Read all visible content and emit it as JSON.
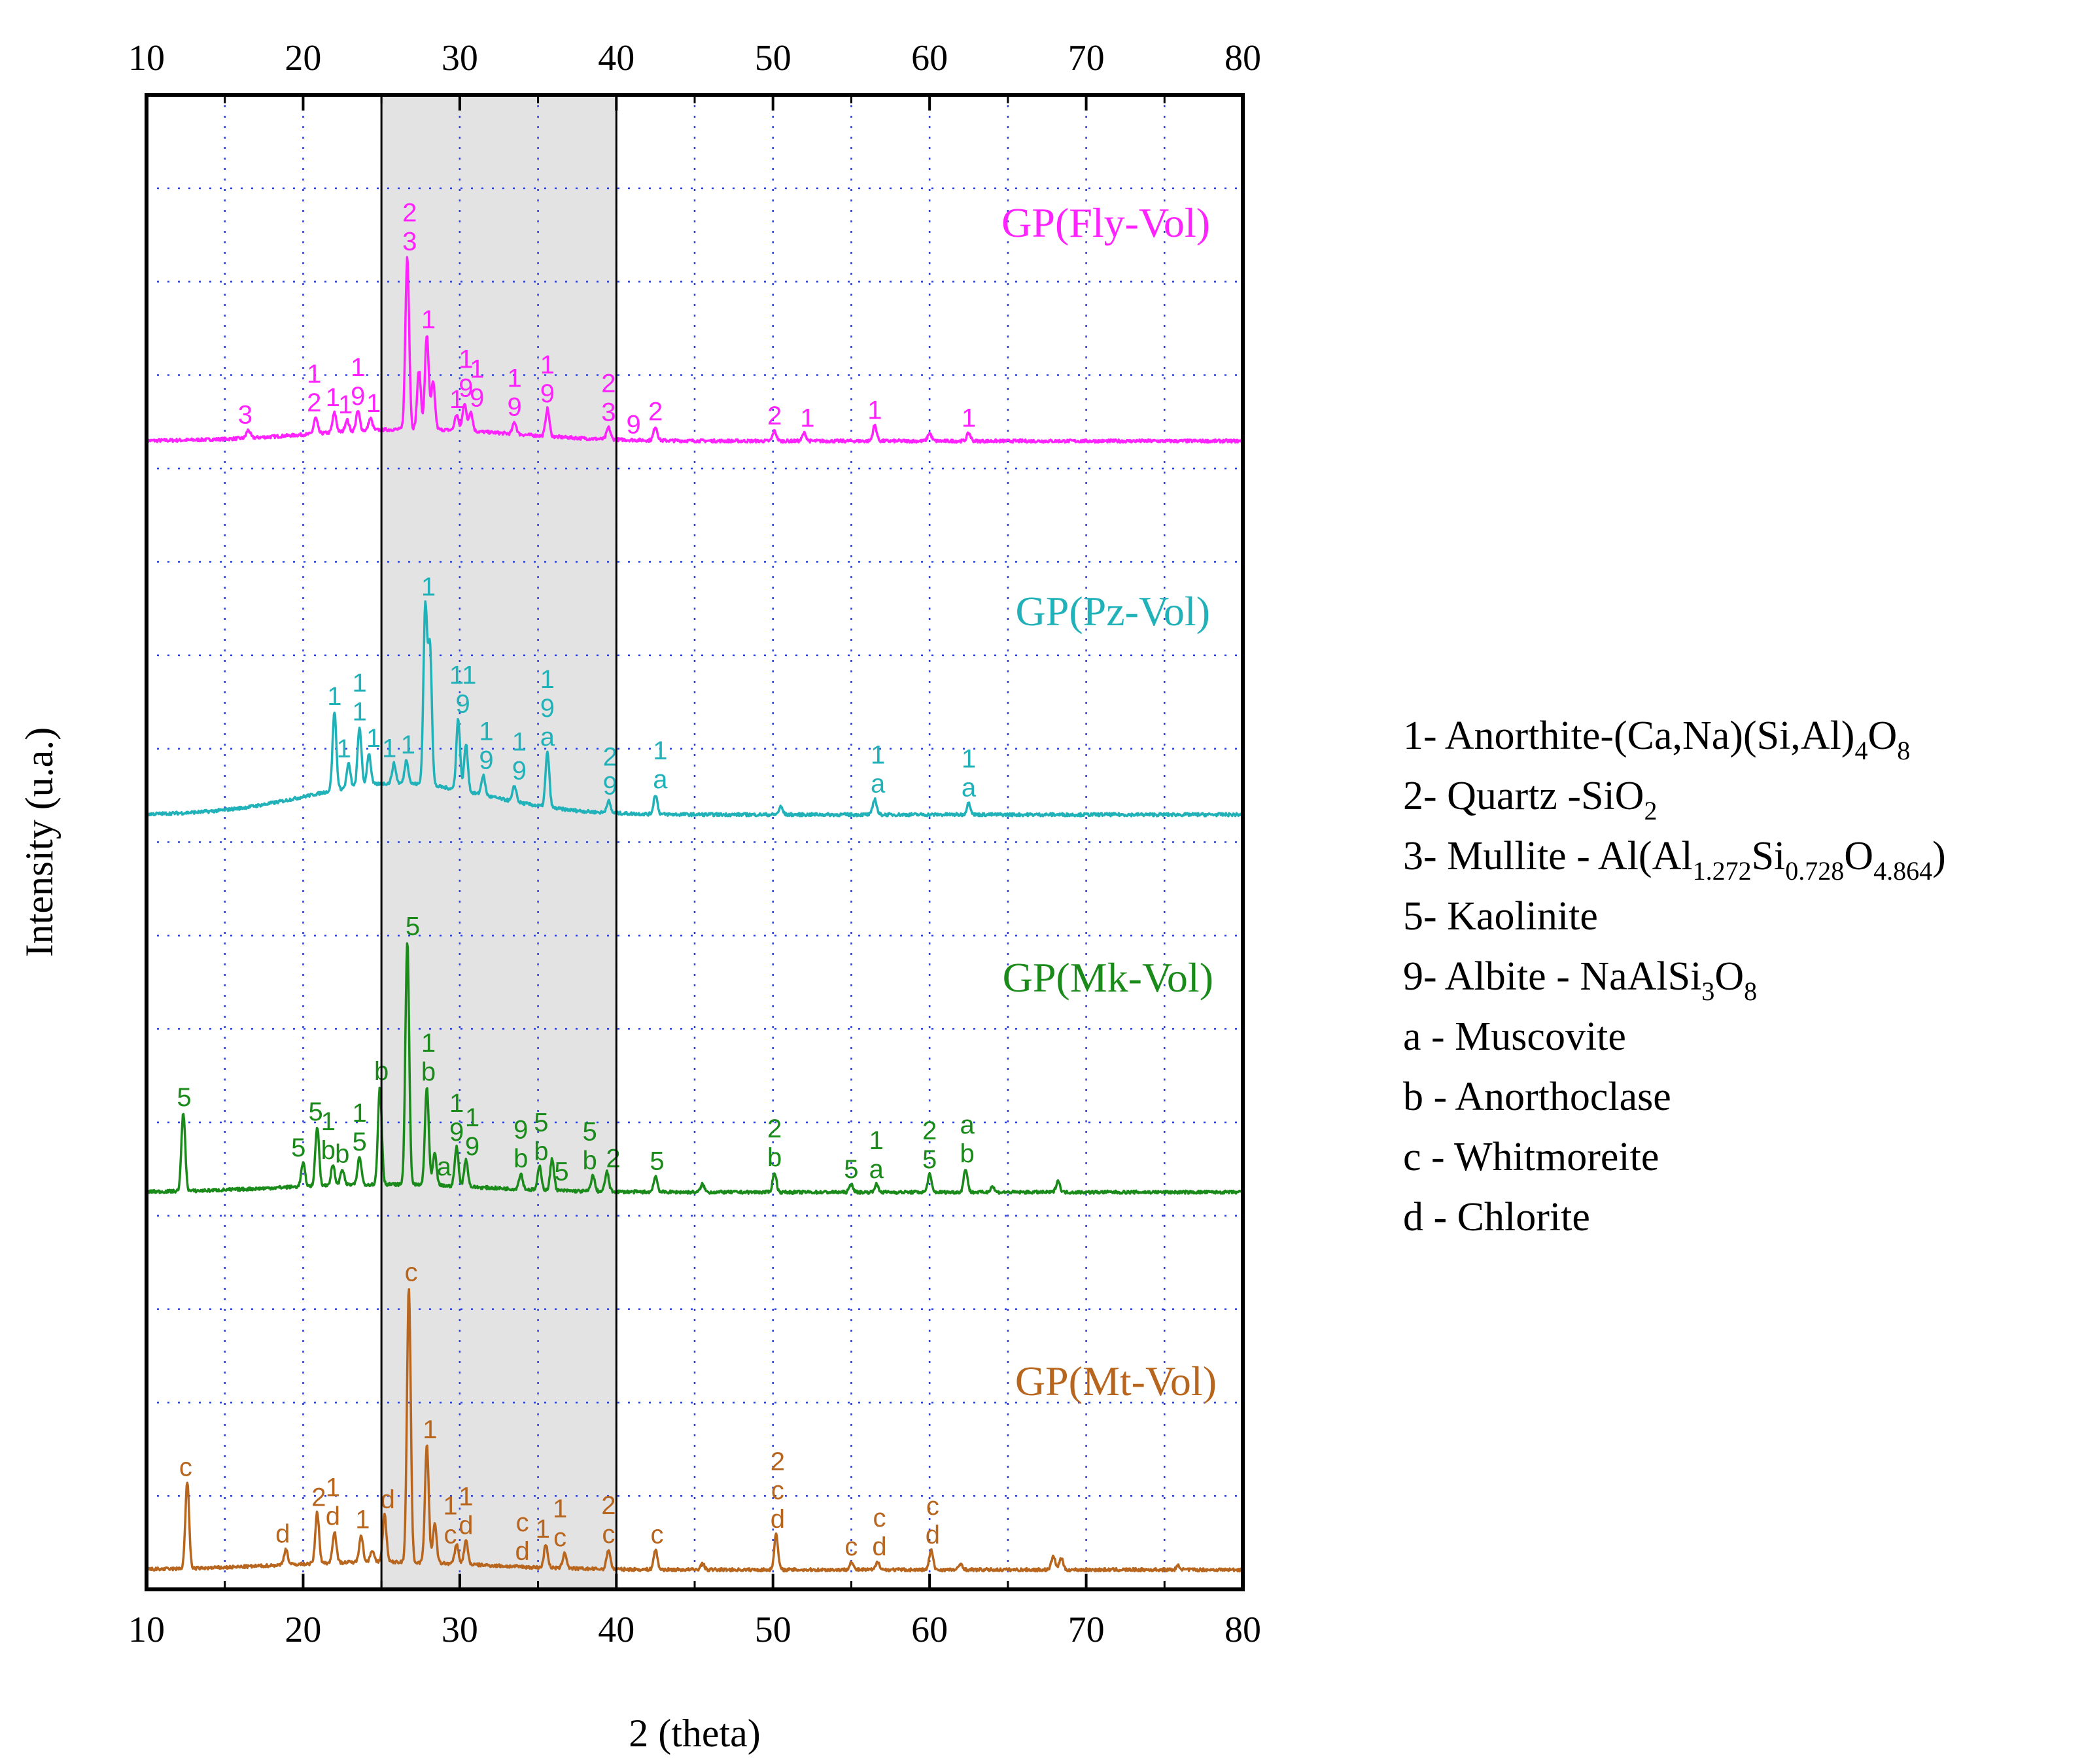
{
  "chart_data": {
    "type": "line",
    "xlabel": "2 (theta)",
    "ylabel": "Intensity (u.a.)",
    "xlim": [
      10,
      80
    ],
    "x_ticks": [
      "10",
      "20",
      "30",
      "40",
      "50",
      "60",
      "70",
      "80"
    ],
    "grid": "dotted blue",
    "highlight_range": [
      25,
      40
    ],
    "series": [
      {
        "name": "GP(Fly-Vol)",
        "color": "#ff22ff",
        "baseline": 0.07,
        "hump": {
          "center": 27,
          "width": 9,
          "height": 0.03
        },
        "peaks": [
          {
            "x": 16.5,
            "h": 0.02
          },
          {
            "x": 20.8,
            "h": 0.04
          },
          {
            "x": 22.0,
            "h": 0.05
          },
          {
            "x": 22.8,
            "h": 0.03
          },
          {
            "x": 23.5,
            "h": 0.05
          },
          {
            "x": 24.3,
            "h": 0.03
          },
          {
            "x": 26.65,
            "h": 0.44
          },
          {
            "x": 27.4,
            "h": 0.15
          },
          {
            "x": 27.9,
            "h": 0.24
          },
          {
            "x": 28.3,
            "h": 0.12
          },
          {
            "x": 29.8,
            "h": 0.04
          },
          {
            "x": 30.3,
            "h": 0.07
          },
          {
            "x": 30.7,
            "h": 0.05
          },
          {
            "x": 33.5,
            "h": 0.03
          },
          {
            "x": 35.6,
            "h": 0.07
          },
          {
            "x": 39.5,
            "h": 0.03
          },
          {
            "x": 42.5,
            "h": 0.035
          },
          {
            "x": 50.1,
            "h": 0.025
          },
          {
            "x": 52.0,
            "h": 0.02
          },
          {
            "x": 56.5,
            "h": 0.04
          },
          {
            "x": 60.0,
            "h": 0.02
          },
          {
            "x": 62.5,
            "h": 0.02
          }
        ],
        "annotations": [
          {
            "x": 16.3,
            "lines": [
              "3"
            ]
          },
          {
            "x": 20.7,
            "lines": [
              "1",
              "2"
            ]
          },
          {
            "x": 21.9,
            "lines": [
              "1"
            ]
          },
          {
            "x": 22.7,
            "lines": [
              "1"
            ]
          },
          {
            "x": 23.5,
            "lines": [
              "1",
              "9"
            ]
          },
          {
            "x": 24.5,
            "lines": [
              "1"
            ]
          },
          {
            "x": 26.8,
            "lines": [
              "2",
              "3"
            ]
          },
          {
            "x": 28.0,
            "lines": [
              "1"
            ]
          },
          {
            "x": 29.8,
            "lines": [
              "1"
            ]
          },
          {
            "x": 30.4,
            "lines": [
              "1",
              "9"
            ]
          },
          {
            "x": 31.1,
            "lines": [
              "1",
              "9"
            ]
          },
          {
            "x": 33.5,
            "lines": [
              "1",
              "9"
            ]
          },
          {
            "x": 35.6,
            "lines": [
              "1",
              "9"
            ]
          },
          {
            "x": 39.5,
            "lines": [
              "2",
              "3"
            ]
          },
          {
            "x": 41.1,
            "lines": [
              "9"
            ]
          },
          {
            "x": 42.5,
            "lines": [
              "2"
            ]
          },
          {
            "x": 50.1,
            "lines": [
              "2"
            ]
          },
          {
            "x": 52.2,
            "lines": [
              "1"
            ]
          },
          {
            "x": 56.5,
            "lines": [
              "1"
            ]
          },
          {
            "x": 62.5,
            "lines": [
              "1"
            ]
          }
        ]
      },
      {
        "name": "GP(Pz-Vol)",
        "color": "#20b2b8",
        "baseline": 0.07,
        "hump": {
          "center": 26,
          "width": 8,
          "height": 0.08
        },
        "peaks": [
          {
            "x": 22.0,
            "h": 0.2
          },
          {
            "x": 22.9,
            "h": 0.06
          },
          {
            "x": 23.6,
            "h": 0.15
          },
          {
            "x": 24.2,
            "h": 0.08
          },
          {
            "x": 25.8,
            "h": 0.05
          },
          {
            "x": 26.6,
            "h": 0.06
          },
          {
            "x": 27.8,
            "h": 0.45
          },
          {
            "x": 28.1,
            "h": 0.35
          },
          {
            "x": 29.9,
            "h": 0.18
          },
          {
            "x": 30.4,
            "h": 0.12
          },
          {
            "x": 31.5,
            "h": 0.05
          },
          {
            "x": 33.5,
            "h": 0.04
          },
          {
            "x": 35.6,
            "h": 0.14
          },
          {
            "x": 39.5,
            "h": 0.03
          },
          {
            "x": 42.5,
            "h": 0.05
          },
          {
            "x": 50.5,
            "h": 0.02
          },
          {
            "x": 56.5,
            "h": 0.04
          },
          {
            "x": 62.5,
            "h": 0.03
          }
        ],
        "annotations": [
          {
            "x": 22.0,
            "lines": [
              "1"
            ]
          },
          {
            "x": 22.6,
            "lines": [
              "1"
            ]
          },
          {
            "x": 23.6,
            "lines": [
              "1",
              "1"
            ]
          },
          {
            "x": 24.5,
            "lines": [
              "1"
            ]
          },
          {
            "x": 25.5,
            "lines": [
              "1"
            ]
          },
          {
            "x": 26.7,
            "lines": [
              "1"
            ]
          },
          {
            "x": 28.0,
            "lines": [
              "1"
            ]
          },
          {
            "x": 30.2,
            "lines": [
              "11",
              "9"
            ]
          },
          {
            "x": 31.7,
            "lines": [
              "1",
              "9"
            ]
          },
          {
            "x": 33.8,
            "lines": [
              "1",
              "9"
            ]
          },
          {
            "x": 35.6,
            "lines": [
              "1",
              "9",
              "a"
            ]
          },
          {
            "x": 39.6,
            "lines": [
              "2",
              "9"
            ]
          },
          {
            "x": 42.8,
            "lines": [
              "1",
              "a"
            ]
          },
          {
            "x": 56.7,
            "lines": [
              "1",
              "a"
            ]
          },
          {
            "x": 62.5,
            "lines": [
              "1",
              "a"
            ]
          }
        ]
      },
      {
        "name": "GP(Mk-Vol)",
        "color": "#1a8a1a",
        "baseline": 0.06,
        "hump": {
          "center": 25,
          "width": 9,
          "height": 0.02
        },
        "peaks": [
          {
            "x": 12.35,
            "h": 0.2
          },
          {
            "x": 20.0,
            "h": 0.06
          },
          {
            "x": 20.9,
            "h": 0.15
          },
          {
            "x": 21.9,
            "h": 0.05
          },
          {
            "x": 22.5,
            "h": 0.04
          },
          {
            "x": 23.6,
            "h": 0.07
          },
          {
            "x": 24.9,
            "h": 0.25
          },
          {
            "x": 26.65,
            "h": 0.62
          },
          {
            "x": 27.9,
            "h": 0.25
          },
          {
            "x": 28.4,
            "h": 0.08
          },
          {
            "x": 29.8,
            "h": 0.1
          },
          {
            "x": 30.4,
            "h": 0.07
          },
          {
            "x": 33.9,
            "h": 0.04
          },
          {
            "x": 35.1,
            "h": 0.06
          },
          {
            "x": 35.9,
            "h": 0.08
          },
          {
            "x": 38.5,
            "h": 0.04
          },
          {
            "x": 39.4,
            "h": 0.05
          },
          {
            "x": 42.5,
            "h": 0.04
          },
          {
            "x": 45.5,
            "h": 0.02
          },
          {
            "x": 50.1,
            "h": 0.05
          },
          {
            "x": 55.0,
            "h": 0.02
          },
          {
            "x": 56.6,
            "h": 0.02
          },
          {
            "x": 60.0,
            "h": 0.045
          },
          {
            "x": 62.3,
            "h": 0.06
          },
          {
            "x": 64.0,
            "h": 0.015
          },
          {
            "x": 68.2,
            "h": 0.03
          }
        ],
        "annotations": [
          {
            "x": 12.4,
            "lines": [
              "5"
            ]
          },
          {
            "x": 19.7,
            "lines": [
              "5"
            ]
          },
          {
            "x": 20.8,
            "lines": [
              "5"
            ]
          },
          {
            "x": 21.6,
            "lines": [
              "1",
              "b"
            ]
          },
          {
            "x": 22.5,
            "lines": [
              "b"
            ]
          },
          {
            "x": 23.6,
            "lines": [
              "1",
              "5"
            ]
          },
          {
            "x": 25.0,
            "lines": [
              "b"
            ]
          },
          {
            "x": 27.0,
            "lines": [
              "5"
            ]
          },
          {
            "x": 28.0,
            "lines": [
              "1",
              "b"
            ]
          },
          {
            "x": 29.0,
            "lines": [
              "a"
            ]
          },
          {
            "x": 29.8,
            "lines": [
              "1",
              "9"
            ]
          },
          {
            "x": 30.8,
            "lines": [
              "1",
              "9"
            ]
          },
          {
            "x": 33.9,
            "lines": [
              "9",
              "b"
            ]
          },
          {
            "x": 35.2,
            "lines": [
              "5",
              "b"
            ]
          },
          {
            "x": 36.5,
            "lines": [
              "5"
            ]
          },
          {
            "x": 38.3,
            "lines": [
              "5",
              "b"
            ]
          },
          {
            "x": 39.8,
            "lines": [
              "2"
            ]
          },
          {
            "x": 42.6,
            "lines": [
              "5"
            ]
          },
          {
            "x": 50.1,
            "lines": [
              "2",
              "b"
            ]
          },
          {
            "x": 55.0,
            "lines": [
              "5"
            ]
          },
          {
            "x": 56.6,
            "lines": [
              "1",
              "a"
            ]
          },
          {
            "x": 60.0,
            "lines": [
              "2",
              "5"
            ]
          },
          {
            "x": 62.4,
            "lines": [
              "a",
              "b"
            ]
          }
        ]
      },
      {
        "name": "GP(Mt-Vol)",
        "color": "#b8651e",
        "baseline": 0.05,
        "hump": {
          "center": 25,
          "width": 9,
          "height": 0.02
        },
        "peaks": [
          {
            "x": 12.6,
            "h": 0.22
          },
          {
            "x": 18.9,
            "h": 0.04
          },
          {
            "x": 20.9,
            "h": 0.13
          },
          {
            "x": 22.0,
            "h": 0.08
          },
          {
            "x": 23.7,
            "h": 0.07
          },
          {
            "x": 24.4,
            "h": 0.03
          },
          {
            "x": 25.2,
            "h": 0.12
          },
          {
            "x": 26.75,
            "h": 0.7
          },
          {
            "x": 27.9,
            "h": 0.3
          },
          {
            "x": 28.4,
            "h": 0.1
          },
          {
            "x": 29.8,
            "h": 0.05
          },
          {
            "x": 30.4,
            "h": 0.06
          },
          {
            "x": 35.5,
            "h": 0.06
          },
          {
            "x": 36.7,
            "h": 0.04
          },
          {
            "x": 39.5,
            "h": 0.05
          },
          {
            "x": 42.5,
            "h": 0.05
          },
          {
            "x": 45.5,
            "h": 0.015
          },
          {
            "x": 50.2,
            "h": 0.09
          },
          {
            "x": 55.0,
            "h": 0.02
          },
          {
            "x": 56.7,
            "h": 0.02
          },
          {
            "x": 60.1,
            "h": 0.05
          },
          {
            "x": 62.0,
            "h": 0.015
          },
          {
            "x": 67.9,
            "h": 0.035
          },
          {
            "x": 68.4,
            "h": 0.03
          },
          {
            "x": 75.9,
            "h": 0.01
          }
        ],
        "annotations": [
          {
            "x": 12.5,
            "lines": [
              "c"
            ]
          },
          {
            "x": 18.7,
            "lines": [
              "d"
            ]
          },
          {
            "x": 21.0,
            "lines": [
              "2"
            ]
          },
          {
            "x": 21.9,
            "lines": [
              "1",
              "d"
            ]
          },
          {
            "x": 23.8,
            "lines": [
              "1"
            ]
          },
          {
            "x": 25.4,
            "lines": [
              "d"
            ]
          },
          {
            "x": 26.9,
            "lines": [
              "c"
            ]
          },
          {
            "x": 28.1,
            "lines": [
              "1"
            ]
          },
          {
            "x": 29.4,
            "lines": [
              "1",
              "c"
            ]
          },
          {
            "x": 30.4,
            "lines": [
              "1",
              "d"
            ]
          },
          {
            "x": 34.0,
            "lines": [
              "c",
              "d"
            ]
          },
          {
            "x": 35.3,
            "lines": [
              "1"
            ]
          },
          {
            "x": 36.4,
            "lines": [
              "1",
              "c"
            ]
          },
          {
            "x": 39.5,
            "lines": [
              "2",
              "c"
            ]
          },
          {
            "x": 42.6,
            "lines": [
              "c"
            ]
          },
          {
            "x": 50.3,
            "lines": [
              "2",
              "c",
              "d"
            ]
          },
          {
            "x": 55.0,
            "lines": [
              "c"
            ]
          },
          {
            "x": 56.8,
            "lines": [
              "c",
              "d"
            ]
          },
          {
            "x": 60.2,
            "lines": [
              "c",
              "d"
            ]
          }
        ]
      }
    ]
  },
  "legend": [
    {
      "text": "1- Anorthite-(Ca,Na)(Si,Al)",
      "parts": [
        {
          "t": "4",
          "s": true
        },
        {
          "t": "O",
          "s": false
        },
        {
          "t": "8",
          "s": true
        }
      ]
    },
    {
      "text": "2- Quartz -SiO",
      "parts": [
        {
          "t": "2",
          "s": true
        }
      ]
    },
    {
      "text": "3- Mullite - Al(Al",
      "parts": [
        {
          "t": "1.272",
          "s": true
        },
        {
          "t": "Si",
          "s": false
        },
        {
          "t": "0.728",
          "s": true
        },
        {
          "t": "O",
          "s": false
        },
        {
          "t": "4.864",
          "s": true
        },
        {
          "t": ")",
          "s": false
        }
      ]
    },
    {
      "text": "5- Kaolinite",
      "parts": []
    },
    {
      "text": "9- Albite - NaAlSi",
      "parts": [
        {
          "t": "3",
          "s": true
        },
        {
          "t": "O",
          "s": false
        },
        {
          "t": "8",
          "s": true
        }
      ]
    },
    {
      "text": "a - Muscovite",
      "parts": []
    },
    {
      "text": "b - Anorthoclase",
      "parts": []
    },
    {
      "text": "c - Whitmoreite",
      "parts": []
    },
    {
      "text": "d - Chlorite",
      "parts": []
    }
  ]
}
